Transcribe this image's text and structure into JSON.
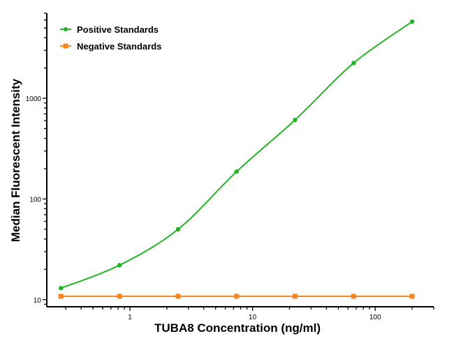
{
  "chart_data": {
    "type": "line",
    "title": "",
    "xlabel": "TUBA8 Concentration (ng/ml)",
    "ylabel": "Median Fluorescent Intensity",
    "xscale": "log",
    "yscale": "log",
    "xlim": [
      0.21,
      300
    ],
    "ylim": [
      8.5,
      7000
    ],
    "x_ticks": [
      1,
      10,
      100
    ],
    "x_tick_labels": [
      "1",
      "10",
      "100"
    ],
    "y_ticks": [
      10,
      100,
      1000
    ],
    "y_tick_labels": [
      "10",
      "100",
      "1000"
    ],
    "grid": false,
    "legend_position": "top-left",
    "x": [
      0.274,
      0.823,
      2.47,
      7.41,
      22.2,
      66.7,
      200
    ],
    "series": [
      {
        "name": "Positive Standards",
        "color": "#22b422",
        "marker": "circle",
        "fit": "smooth curve",
        "values": [
          13,
          22,
          50,
          187,
          610,
          2240,
          5770
        ]
      },
      {
        "name": "Negative Standards",
        "color": "#f5861f",
        "marker": "square",
        "fit": "line",
        "values": [
          10.8,
          10.8,
          10.8,
          10.8,
          10.8,
          10.8,
          10.8
        ]
      }
    ]
  }
}
